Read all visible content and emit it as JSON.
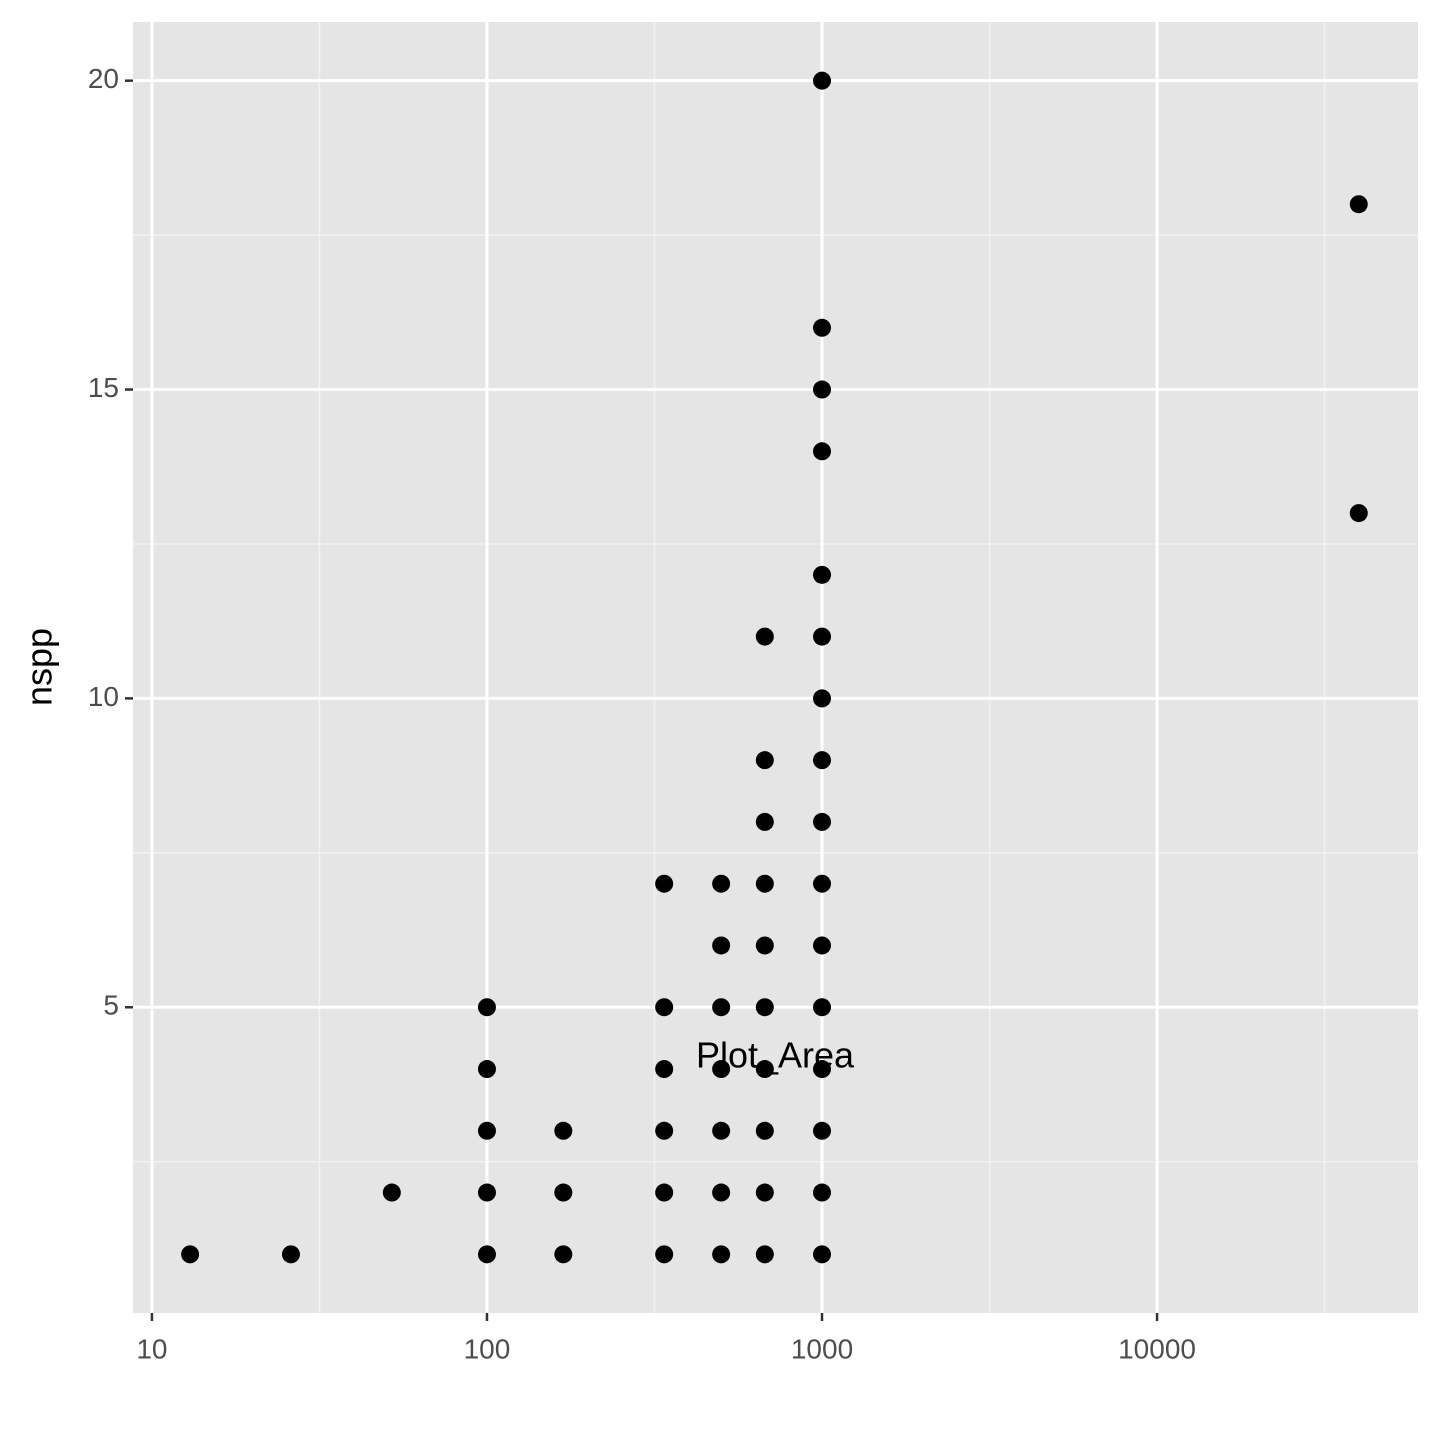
{
  "chart_data": {
    "type": "scatter",
    "xlabel": "Plot_Area",
    "ylabel": "nspp",
    "color": "#000000",
    "x": [
      13,
      26,
      52,
      100,
      100,
      100,
      100,
      100,
      169,
      169,
      169,
      338,
      338,
      338,
      338,
      338,
      338,
      500,
      500,
      500,
      500,
      500,
      500,
      500,
      675,
      675,
      675,
      675,
      675,
      675,
      675,
      675,
      675,
      675,
      1000,
      1000,
      1000,
      1000,
      1000,
      1000,
      1000,
      1000,
      1000,
      1000,
      1000,
      1000,
      1000,
      1000,
      1000,
      1000,
      40000,
      40000
    ],
    "values": [
      1,
      1,
      2,
      1,
      2,
      3,
      4,
      5,
      1,
      2,
      3,
      1,
      2,
      3,
      4,
      5,
      7,
      1,
      2,
      3,
      4,
      5,
      6,
      7,
      1,
      2,
      3,
      4,
      5,
      6,
      7,
      8,
      9,
      11,
      1,
      2,
      3,
      4,
      5,
      6,
      7,
      8,
      9,
      10,
      11,
      12,
      14,
      15,
      16,
      20,
      13,
      18
    ],
    "xlog": true,
    "xlim": [
      8.78,
      60100
    ],
    "ylim": [
      0.05,
      20.95
    ],
    "xticks": [
      10,
      100,
      1000,
      10000
    ],
    "yticks": [
      5,
      10,
      15,
      20
    ],
    "grid": true
  }
}
